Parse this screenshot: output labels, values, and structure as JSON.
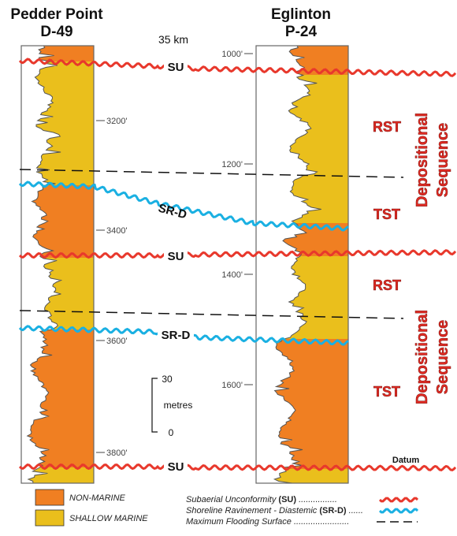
{
  "wells": [
    {
      "name_line1": "Pedder Point",
      "name_line2": "D-49",
      "depth_labels": [
        "3200'",
        "3400'",
        "3600'",
        "3800'"
      ]
    },
    {
      "name_line1": "Eglinton",
      "name_line2": "P-24",
      "depth_labels": [
        "1000'",
        "1200'",
        "1400'",
        "1600'"
      ]
    }
  ],
  "distance_label": "35 km",
  "surface_labels": {
    "su": "SU",
    "srd": "SR-D",
    "datum": "Datum"
  },
  "systems_tracts": [
    "RST",
    "TST",
    "RST",
    "TST"
  ],
  "sequence_label_line1": "Depositional",
  "sequence_label_line2": "Sequence",
  "scale": {
    "top": "30",
    "unit": "metres",
    "bottom": "0"
  },
  "legend": {
    "facies": [
      {
        "label": "NON-MARINE",
        "color": "#f07f22"
      },
      {
        "label": "SHALLOW MARINE",
        "color": "#eabf1c"
      }
    ],
    "lines": [
      {
        "label": "Subaerial Unconformity",
        "abbr": "(SU)",
        "color": "#e8382c",
        "style": "wavy"
      },
      {
        "label": "Shoreline Ravinement - Diastemic",
        "abbr": "(SR-D)",
        "color": "#1ab0e2",
        "style": "wavy"
      },
      {
        "label": "Maximum Flooding Surface",
        "abbr": "",
        "color": "#111111",
        "style": "dashed"
      }
    ],
    "dots": "................"
  },
  "colors": {
    "non_marine": "#f07f22",
    "shallow_marine": "#eabf1c",
    "su": "#e8382c",
    "srd": "#1ab0e2",
    "mfs": "#111111"
  }
}
